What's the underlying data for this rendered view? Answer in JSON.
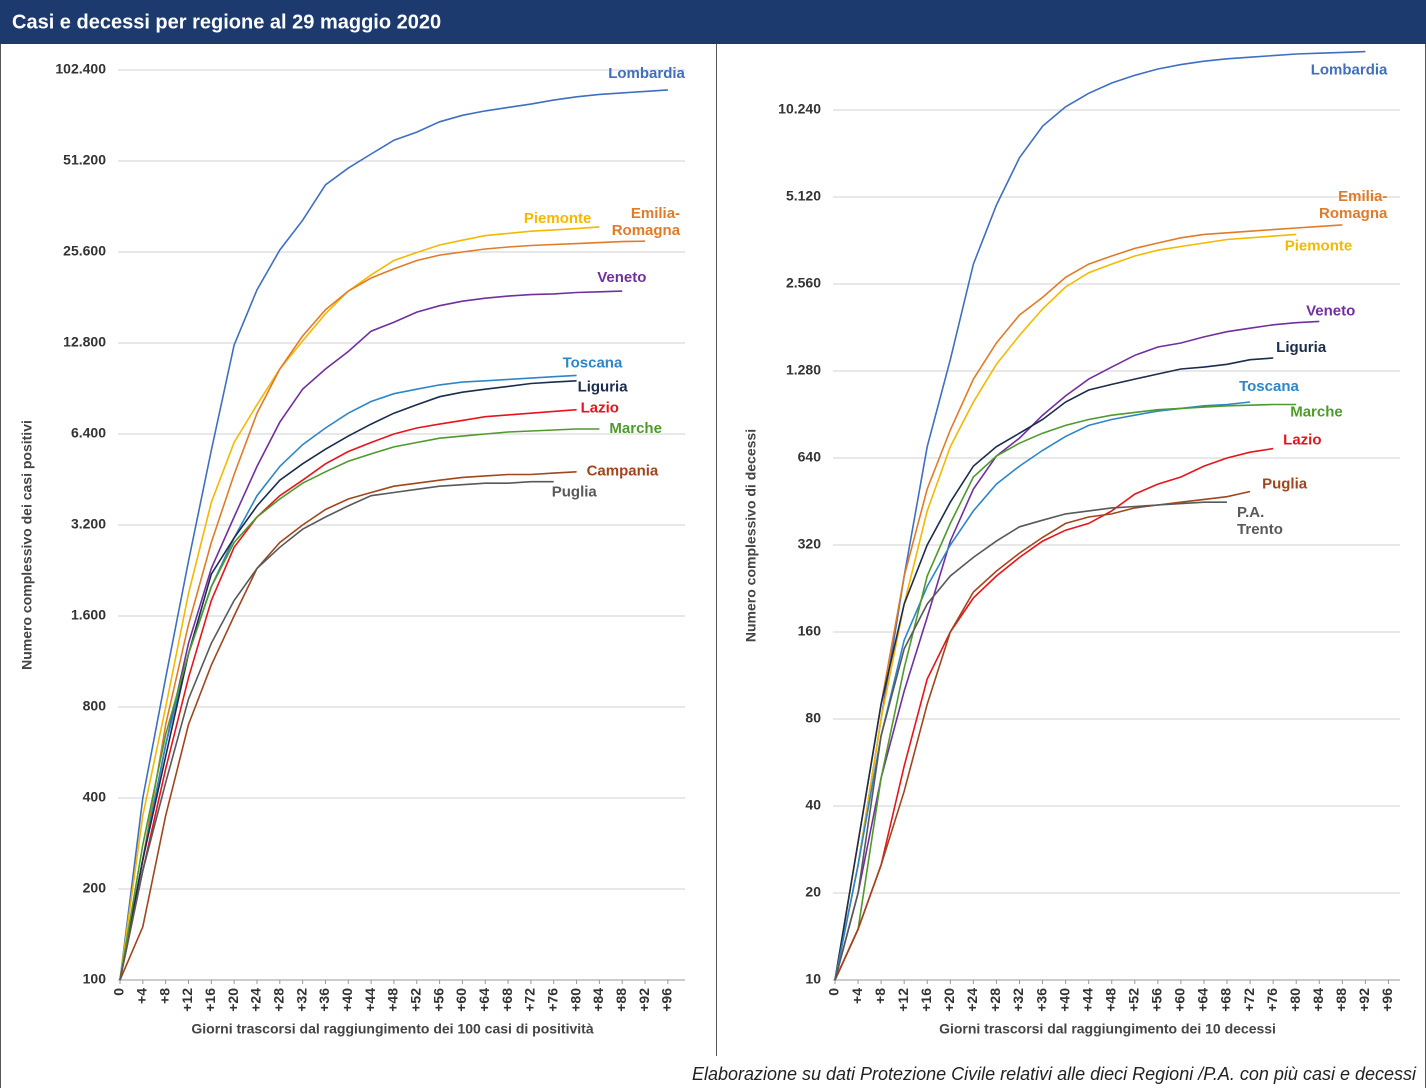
{
  "title": "Casi e decessi per regione al 29 maggio 2020",
  "note": "Elaborazione su dati Protezione Civile relativi alle dieci Regioni /P.A. con più casi e decessi",
  "chart_data": [
    {
      "type": "line",
      "log_y": true,
      "grid": true,
      "y_label": "Numero complessivo dei casi positivi",
      "x_label": "Giorni trascorsi dal raggiungimento dei 100 casi di positività",
      "xlim": [
        0,
        99
      ],
      "ylim": [
        100,
        102400
      ],
      "xticks": [
        0,
        {
          "value": 4,
          "label": "+4"
        },
        {
          "value": 8,
          "label": "+8"
        },
        {
          "value": 12,
          "label": "+12"
        },
        {
          "value": 16,
          "label": "+16"
        },
        {
          "value": 20,
          "label": "+20"
        },
        {
          "value": 24,
          "label": "+24"
        },
        {
          "value": 28,
          "label": "+28"
        },
        {
          "value": 32,
          "label": "+32"
        },
        {
          "value": 36,
          "label": "+36"
        },
        {
          "value": 40,
          "label": "+40"
        },
        {
          "value": 44,
          "label": "+44"
        },
        {
          "value": 48,
          "label": "+48"
        },
        {
          "value": 52,
          "label": "+52"
        },
        {
          "value": 56,
          "label": "+56"
        },
        {
          "value": 60,
          "label": "+60"
        },
        {
          "value": 64,
          "label": "+64"
        },
        {
          "value": 68,
          "label": "+68"
        },
        {
          "value": 72,
          "label": "+72"
        },
        {
          "value": 76,
          "label": "+76"
        },
        {
          "value": 80,
          "label": "+80"
        },
        {
          "value": 84,
          "label": "+84"
        },
        {
          "value": 88,
          "label": "+88"
        },
        {
          "value": 92,
          "label": "+92"
        },
        {
          "value": 96,
          "label": "+96"
        }
      ],
      "yticks": [
        100,
        200,
        400,
        800,
        {
          "value": 1600,
          "label": "1.600"
        },
        {
          "value": 3200,
          "label": "3.200"
        },
        {
          "value": 6400,
          "label": "6.400"
        },
        {
          "value": 12800,
          "label": "12.800"
        },
        {
          "value": 25600,
          "label": "25.600"
        },
        {
          "value": 51200,
          "label": "51.200"
        },
        {
          "value": 102400,
          "label": "102.400"
        }
      ],
      "x": [
        0,
        4,
        8,
        12,
        16,
        20,
        24,
        28,
        32,
        36,
        40,
        44,
        48,
        52,
        56,
        60,
        64,
        68,
        72,
        76,
        80,
        84,
        88,
        92,
        96
      ],
      "series": [
        {
          "name": "Lombardia",
          "color": "#3f6fc0",
          "values": [
            100,
            400,
            1000,
            2430,
            5650,
            12600,
            19200,
            26000,
            32600,
            42700,
            48500,
            54000,
            60000,
            63800,
            69000,
            72500,
            75000,
            77000,
            79000,
            81400,
            83500,
            85000,
            86000,
            87000,
            88000
          ]
        },
        {
          "name": "Piemonte",
          "color": "#f5b800",
          "values": [
            100,
            350,
            800,
            1900,
            3800,
            6000,
            8000,
            10500,
            13000,
            16000,
            19000,
            21500,
            24000,
            25500,
            27000,
            28000,
            29000,
            29500,
            30000,
            30300,
            30600,
            31000,
            null,
            null,
            null
          ]
        },
        {
          "name": "Emilia-Romagna",
          "color": "#e07b29",
          "values": [
            100,
            250,
            700,
            1500,
            2800,
            4700,
            7500,
            10500,
            13500,
            16500,
            19000,
            21000,
            22500,
            24000,
            25000,
            25600,
            26200,
            26600,
            26900,
            27100,
            27300,
            27500,
            27700,
            27800,
            null
          ]
        },
        {
          "name": "Veneto",
          "color": "#7030a0",
          "values": [
            100,
            250,
            600,
            1300,
            2300,
            3400,
            5000,
            7000,
            9000,
            10500,
            12000,
            14000,
            15000,
            16200,
            17000,
            17600,
            18000,
            18300,
            18500,
            18600,
            18800,
            18900,
            19000,
            null,
            null
          ]
        },
        {
          "name": "Toscana",
          "color": "#2e86c8",
          "values": [
            100,
            250,
            600,
            1200,
            2000,
            2900,
            4000,
            5000,
            5900,
            6700,
            7500,
            8200,
            8700,
            9000,
            9300,
            9500,
            9600,
            9700,
            9800,
            9900,
            10000,
            null,
            null,
            null,
            null
          ]
        },
        {
          "name": "Liguria",
          "color": "#1c2c4c",
          "values": [
            100,
            250,
            550,
            1200,
            2200,
            2900,
            3700,
            4500,
            5100,
            5700,
            6300,
            6900,
            7500,
            8000,
            8500,
            8800,
            9000,
            9200,
            9400,
            9500,
            9600,
            null,
            null,
            null,
            null
          ]
        },
        {
          "name": "Lazio",
          "color": "#e8141c",
          "values": [
            100,
            230,
            500,
            1000,
            1800,
            2700,
            3400,
            4000,
            4500,
            5100,
            5600,
            6000,
            6400,
            6700,
            6900,
            7100,
            7300,
            7400,
            7500,
            7600,
            7700,
            null,
            null,
            null,
            null
          ]
        },
        {
          "name": "Marche",
          "color": "#4e9a2c",
          "values": [
            100,
            280,
            650,
            1200,
            2000,
            2800,
            3400,
            3900,
            4400,
            4800,
            5200,
            5500,
            5800,
            6000,
            6200,
            6300,
            6400,
            6500,
            6550,
            6600,
            6650,
            6650,
            null,
            null,
            null
          ]
        },
        {
          "name": "Campania",
          "color": "#a0461e",
          "values": [
            100,
            150,
            350,
            700,
            1100,
            1600,
            2300,
            2800,
            3200,
            3600,
            3900,
            4100,
            4300,
            4400,
            4500,
            4600,
            4650,
            4700,
            4700,
            4750,
            4800,
            null,
            null,
            null,
            null
          ]
        },
        {
          "name": "Puglia",
          "color": "#595959",
          "values": [
            100,
            230,
            450,
            850,
            1300,
            1800,
            2300,
            2700,
            3100,
            3400,
            3700,
            4000,
            4100,
            4200,
            4300,
            4350,
            4400,
            4400,
            4450,
            4450,
            null,
            null,
            null,
            null,
            null
          ]
        }
      ]
    },
    {
      "type": "line",
      "log_y": true,
      "grid": true,
      "y_label": "Numero complessivo di decessi",
      "x_label": "Giorni trascorsi dal raggiungimento dei 10 decessi",
      "xlim": [
        0,
        98
      ],
      "ylim": [
        10,
        16384
      ],
      "xticks": [
        0,
        {
          "value": 4,
          "label": "+4"
        },
        {
          "value": 8,
          "label": "+8"
        },
        {
          "value": 12,
          "label": "+12"
        },
        {
          "value": 16,
          "label": "+16"
        },
        {
          "value": 20,
          "label": "+20"
        },
        {
          "value": 24,
          "label": "+24"
        },
        {
          "value": 28,
          "label": "+28"
        },
        {
          "value": 32,
          "label": "+32"
        },
        {
          "value": 36,
          "label": "+36"
        },
        {
          "value": 40,
          "label": "+40"
        },
        {
          "value": 44,
          "label": "+44"
        },
        {
          "value": 48,
          "label": "+48"
        },
        {
          "value": 52,
          "label": "+52"
        },
        {
          "value": 56,
          "label": "+56"
        },
        {
          "value": 60,
          "label": "+60"
        },
        {
          "value": 64,
          "label": "+64"
        },
        {
          "value": 68,
          "label": "+68"
        },
        {
          "value": 72,
          "label": "+72"
        },
        {
          "value": 76,
          "label": "+76"
        },
        {
          "value": 80,
          "label": "+80"
        },
        {
          "value": 84,
          "label": "+84"
        },
        {
          "value": 88,
          "label": "+88"
        },
        {
          "value": 92,
          "label": "+92"
        },
        {
          "value": 96,
          "label": "+96"
        }
      ],
      "yticks": [
        10,
        20,
        40,
        80,
        160,
        320,
        640,
        {
          "value": 1280,
          "label": "1.280"
        },
        {
          "value": 2560,
          "label": "2.560"
        },
        {
          "value": 5120,
          "label": "5.120"
        },
        {
          "value": 10240,
          "label": "10.240"
        }
      ],
      "x": [
        0,
        4,
        8,
        12,
        16,
        20,
        24,
        28,
        32,
        36,
        40,
        44,
        48,
        52,
        56,
        60,
        64,
        68,
        72,
        76,
        80,
        84,
        88,
        92,
        96
      ],
      "series": [
        {
          "name": "Lombardia",
          "color": "#3f6fc0",
          "values": [
            10,
            25,
            80,
            250,
            700,
            1400,
            3000,
            4800,
            7000,
            9000,
            10500,
            11700,
            12700,
            13500,
            14200,
            14700,
            15100,
            15400,
            15600,
            15800,
            16000,
            16100,
            16200,
            16300,
            null
          ]
        },
        {
          "name": "Emilia-Romagna",
          "color": "#e07b29",
          "values": [
            10,
            30,
            90,
            250,
            500,
            800,
            1200,
            1600,
            2000,
            2300,
            2700,
            3000,
            3200,
            3400,
            3550,
            3700,
            3800,
            3850,
            3900,
            3950,
            4000,
            4050,
            4100,
            null,
            null
          ]
        },
        {
          "name": "Piemonte",
          "color": "#f5b800",
          "values": [
            10,
            25,
            80,
            200,
            420,
            700,
            1000,
            1350,
            1700,
            2100,
            2500,
            2800,
            3000,
            3200,
            3350,
            3450,
            3550,
            3650,
            3700,
            3750,
            3800,
            null,
            null,
            null,
            null
          ]
        },
        {
          "name": "Veneto",
          "color": "#7030a0",
          "values": [
            10,
            20,
            50,
            100,
            180,
            330,
            500,
            650,
            750,
            900,
            1050,
            1200,
            1320,
            1450,
            1550,
            1600,
            1680,
            1750,
            1800,
            1850,
            1880,
            1900,
            null,
            null,
            null
          ]
        },
        {
          "name": "Liguria",
          "color": "#1c2c4c",
          "values": [
            10,
            30,
            90,
            200,
            320,
            450,
            600,
            700,
            780,
            870,
            1000,
            1100,
            1150,
            1200,
            1250,
            1300,
            1320,
            1350,
            1400,
            1420,
            null,
            null,
            null,
            null,
            null
          ]
        },
        {
          "name": "Toscana",
          "color": "#2e86c8",
          "values": [
            10,
            25,
            70,
            150,
            230,
            320,
            420,
            520,
            600,
            680,
            760,
            830,
            870,
            900,
            930,
            950,
            970,
            980,
            1000,
            null,
            null,
            null,
            null,
            null,
            null
          ]
        },
        {
          "name": "Marche",
          "color": "#4e9a2c",
          "values": [
            10,
            15,
            50,
            120,
            250,
            380,
            550,
            650,
            720,
            780,
            830,
            870,
            900,
            920,
            940,
            950,
            960,
            970,
            975,
            980,
            980,
            null,
            null,
            null,
            null
          ]
        },
        {
          "name": "Lazio",
          "color": "#e8141c",
          "values": [
            10,
            15,
            25,
            55,
            110,
            160,
            210,
            250,
            290,
            330,
            360,
            380,
            420,
            480,
            520,
            550,
            600,
            640,
            670,
            690,
            null,
            null,
            null,
            null,
            null
          ]
        },
        {
          "name": "Puglia",
          "color": "#a0461e",
          "values": [
            10,
            15,
            25,
            45,
            90,
            160,
            220,
            260,
            300,
            340,
            380,
            400,
            410,
            430,
            440,
            450,
            460,
            470,
            490,
            null,
            null,
            null,
            null,
            null,
            null
          ]
        },
        {
          "name": "P.A. Trento",
          "color": "#595959",
          "values": [
            10,
            20,
            70,
            140,
            200,
            250,
            290,
            330,
            370,
            390,
            410,
            420,
            430,
            435,
            440,
            445,
            450,
            450,
            null,
            null,
            null,
            null,
            null,
            null,
            null
          ]
        }
      ]
    }
  ]
}
